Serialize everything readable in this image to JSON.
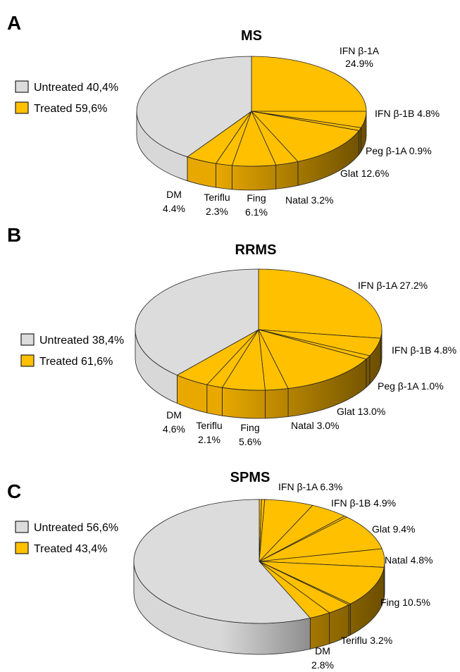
{
  "colors": {
    "treated": "#FFC000",
    "treated_side_light": "#E8A800",
    "treated_side_dark": "#6B4E00",
    "untreated": "#DCDCDC",
    "untreated_side_light": "#D8D8D8",
    "untreated_side_dark": "#505050",
    "edge": "#222222"
  },
  "chart_data": [
    {
      "type": "pie",
      "panel": "A",
      "title": "MS",
      "legend": [
        {
          "label": "Untreated 40,4%",
          "group": "untreated"
        },
        {
          "label": "Treated 59,6%",
          "group": "treated"
        }
      ],
      "slices": [
        {
          "name": "IFN β-1A",
          "value": 24.9,
          "label": [
            "IFN β-1A",
            "24.9%"
          ],
          "group": "treated"
        },
        {
          "name": "IFN β-1B",
          "value": 4.8,
          "label": [
            "IFN β-1B 4.8%"
          ],
          "group": "treated"
        },
        {
          "name": "Peg β-1A",
          "value": 0.9,
          "label": [
            "Peg β-1A 0.9%"
          ],
          "group": "treated"
        },
        {
          "name": "Glat",
          "value": 12.6,
          "label": [
            "Glat 12.6%"
          ],
          "group": "treated"
        },
        {
          "name": "Natal",
          "value": 3.2,
          "label": [
            "Natal 3.2%"
          ],
          "group": "treated"
        },
        {
          "name": "Fing",
          "value": 6.1,
          "label": [
            "Fing",
            "6.1%"
          ],
          "group": "treated"
        },
        {
          "name": "Teriflu",
          "value": 2.3,
          "label": [
            "Teriflu",
            "2.3%"
          ],
          "group": "treated"
        },
        {
          "name": "DM",
          "value": 4.4,
          "label": [
            "DM",
            "4.4%"
          ],
          "group": "treated"
        },
        {
          "name": "Untreated",
          "value": 40.4,
          "label": [],
          "group": "untreated"
        }
      ]
    },
    {
      "type": "pie",
      "panel": "B",
      "title": "RRMS",
      "legend": [
        {
          "label": "Untreated 38,4%",
          "group": "untreated"
        },
        {
          "label": "Treated 61,6%",
          "group": "treated"
        }
      ],
      "slices": [
        {
          "name": "IFN β-1A",
          "value": 27.2,
          "label": [
            "IFN β-1A 27.2%"
          ],
          "group": "treated"
        },
        {
          "name": "IFN β-1B",
          "value": 4.8,
          "label": [
            "IFN β-1B 4.8%"
          ],
          "group": "treated"
        },
        {
          "name": "Peg β-1A",
          "value": 1.0,
          "label": [
            "Peg β-1A 1.0%"
          ],
          "group": "treated"
        },
        {
          "name": "Glat",
          "value": 13.0,
          "label": [
            "Glat 13.0%"
          ],
          "group": "treated"
        },
        {
          "name": "Natal",
          "value": 3.0,
          "label": [
            "Natal 3.0%"
          ],
          "group": "treated"
        },
        {
          "name": "Fing",
          "value": 5.6,
          "label": [
            "Fing",
            "5.6%"
          ],
          "group": "treated"
        },
        {
          "name": "Teriflu",
          "value": 2.1,
          "label": [
            "Teriflu",
            "2.1%"
          ],
          "group": "treated"
        },
        {
          "name": "DM",
          "value": 4.6,
          "label": [
            "DM",
            "4.6%"
          ],
          "group": "treated"
        },
        {
          "name": "Untreated",
          "value": 38.4,
          "label": [],
          "group": "untreated"
        }
      ]
    },
    {
      "type": "pie",
      "panel": "C",
      "title": "SPMS",
      "legend": [
        {
          "label": "Untreated 56,6%",
          "group": "untreated"
        },
        {
          "label": "Treated 43,4%",
          "group": "treated"
        }
      ],
      "slices": [
        {
          "name": "Small-1",
          "value": 0.3,
          "label": [],
          "group": "treated"
        },
        {
          "name": "Small-2",
          "value": 0.4,
          "label": [],
          "group": "treated"
        },
        {
          "name": "IFN β-1A",
          "value": 6.3,
          "label": [
            "IFN β-1A 6.3%"
          ],
          "group": "treated"
        },
        {
          "name": "IFN β-1B",
          "value": 4.9,
          "label": [
            "IFN β-1B 4.9%"
          ],
          "group": "treated"
        },
        {
          "name": "Small-3",
          "value": 0.4,
          "label": [],
          "group": "treated"
        },
        {
          "name": "Glat",
          "value": 9.4,
          "label": [
            "Glat 9.4%"
          ],
          "group": "treated"
        },
        {
          "name": "Natal",
          "value": 4.8,
          "label": [
            "Natal 4.8%"
          ],
          "group": "treated"
        },
        {
          "name": "Fing",
          "value": 10.5,
          "label": [
            "Fing 10.5%"
          ],
          "group": "treated"
        },
        {
          "name": "Small-4",
          "value": 0.3,
          "label": [],
          "group": "treated"
        },
        {
          "name": "Teriflu",
          "value": 3.2,
          "label": [
            "Teriflu 3.2%"
          ],
          "group": "treated"
        },
        {
          "name": "DM",
          "value": 2.8,
          "label": [
            "DM",
            "2.8%"
          ],
          "group": "treated"
        },
        {
          "name": "Untreated",
          "value": 56.6,
          "label": [],
          "group": "untreated"
        }
      ]
    }
  ]
}
